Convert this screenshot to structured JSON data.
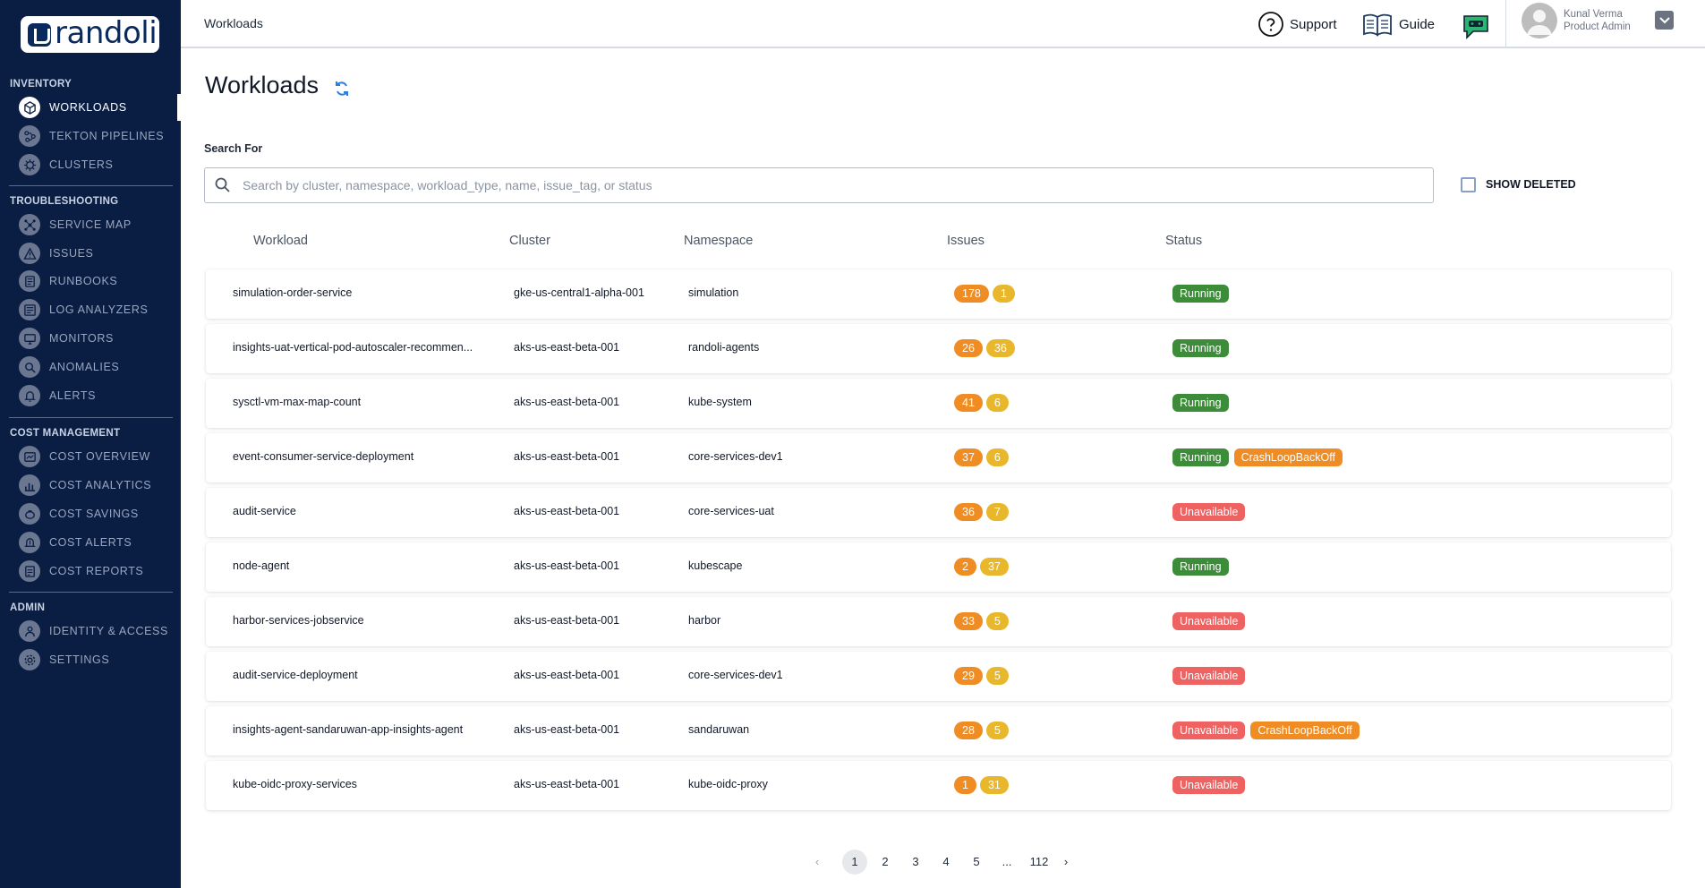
{
  "brand": {
    "logo_text": "randoli"
  },
  "sidebar": {
    "sections": [
      {
        "title": "INVENTORY"
      },
      {
        "title": "TROUBLESHOOTING"
      },
      {
        "title": "COST MANAGEMENT"
      },
      {
        "title": "ADMIN"
      }
    ],
    "items": [
      {
        "label": "WORKLOADS",
        "icon": "cube-icon",
        "active": true
      },
      {
        "label": "TEKTON PIPELINES",
        "icon": "pipeline-icon"
      },
      {
        "label": "CLUSTERS",
        "icon": "helm-icon"
      },
      {
        "label": "SERVICE MAP",
        "icon": "network-icon"
      },
      {
        "label": "ISSUES",
        "icon": "warning-icon"
      },
      {
        "label": "RUNBOOKS",
        "icon": "book-icon"
      },
      {
        "label": "LOG ANALYZERS",
        "icon": "log-icon"
      },
      {
        "label": "MONITORS",
        "icon": "monitor-icon"
      },
      {
        "label": "ANOMALIES",
        "icon": "search-anomaly-icon"
      },
      {
        "label": "ALERTS",
        "icon": "bell-icon"
      },
      {
        "label": "COST OVERVIEW",
        "icon": "cost-overview-icon"
      },
      {
        "label": "COST ANALYTICS",
        "icon": "chart-icon"
      },
      {
        "label": "COST SAVINGS",
        "icon": "piggy-icon"
      },
      {
        "label": "COST ALERTS",
        "icon": "dollar-bell-icon"
      },
      {
        "label": "COST REPORTS",
        "icon": "report-icon"
      },
      {
        "label": "IDENTITY & ACCESS",
        "icon": "user-key-icon"
      },
      {
        "label": "SETTINGS",
        "icon": "gear-icon"
      }
    ]
  },
  "header": {
    "breadcrumb": "Workloads",
    "support_label": "Support",
    "guide_label": "Guide",
    "user_name": "Kunal Verma",
    "user_role": "Product Admin"
  },
  "main": {
    "title": "Workloads",
    "search_label": "Search For",
    "search_placeholder": "Search by cluster, namespace, workload_type, name, issue_tag, or status",
    "show_deleted_label": "SHOW DELETED",
    "columns": [
      "Workload",
      "Cluster",
      "Namespace",
      "Issues",
      "Status"
    ],
    "rows": [
      {
        "workload": "simulation-order-service",
        "cluster": "gke-us-central1-alpha-001",
        "namespace": "simulation",
        "issues": [
          "178",
          "1"
        ],
        "status": [
          "Running"
        ]
      },
      {
        "workload": "insights-uat-vertical-pod-autoscaler-recommen...",
        "cluster": "aks-us-east-beta-001",
        "namespace": "randoli-agents",
        "issues": [
          "26",
          "36"
        ],
        "status": [
          "Running"
        ]
      },
      {
        "workload": "sysctl-vm-max-map-count",
        "cluster": "aks-us-east-beta-001",
        "namespace": "kube-system",
        "issues": [
          "41",
          "6"
        ],
        "status": [
          "Running"
        ]
      },
      {
        "workload": "event-consumer-service-deployment",
        "cluster": "aks-us-east-beta-001",
        "namespace": "core-services-dev1",
        "issues": [
          "37",
          "6"
        ],
        "status": [
          "Running",
          "CrashLoopBackOff"
        ]
      },
      {
        "workload": "audit-service",
        "cluster": "aks-us-east-beta-001",
        "namespace": "core-services-uat",
        "issues": [
          "36",
          "7"
        ],
        "status": [
          "Unavailable"
        ]
      },
      {
        "workload": "node-agent",
        "cluster": "aks-us-east-beta-001",
        "namespace": "kubescape",
        "issues": [
          "2",
          "37"
        ],
        "status": [
          "Running"
        ]
      },
      {
        "workload": "harbor-services-jobservice",
        "cluster": "aks-us-east-beta-001",
        "namespace": "harbor",
        "issues": [
          "33",
          "5"
        ],
        "status": [
          "Unavailable"
        ]
      },
      {
        "workload": "audit-service-deployment",
        "cluster": "aks-us-east-beta-001",
        "namespace": "core-services-dev1",
        "issues": [
          "29",
          "5"
        ],
        "status": [
          "Unavailable"
        ]
      },
      {
        "workload": "insights-agent-sandaruwan-app-insights-agent",
        "cluster": "aks-us-east-beta-001",
        "namespace": "sandaruwan",
        "issues": [
          "28",
          "5"
        ],
        "status": [
          "Unavailable",
          "CrashLoopBackOff"
        ]
      },
      {
        "workload": "kube-oidc-proxy-services",
        "cluster": "aks-us-east-beta-001",
        "namespace": "kube-oidc-proxy",
        "issues": [
          "1",
          "31"
        ],
        "status": [
          "Unavailable"
        ]
      }
    ]
  },
  "pagination": {
    "pages": [
      "1",
      "2",
      "3",
      "4",
      "5",
      "...",
      "112"
    ],
    "current": "1"
  },
  "colors": {
    "sidebar_bg": "#0a1e44",
    "running": "#3d8c3a",
    "unavailable": "#ef6262",
    "crash": "#ef8c23",
    "issue_orange": "#ef8c23",
    "issue_yellow": "#e8b72c"
  }
}
